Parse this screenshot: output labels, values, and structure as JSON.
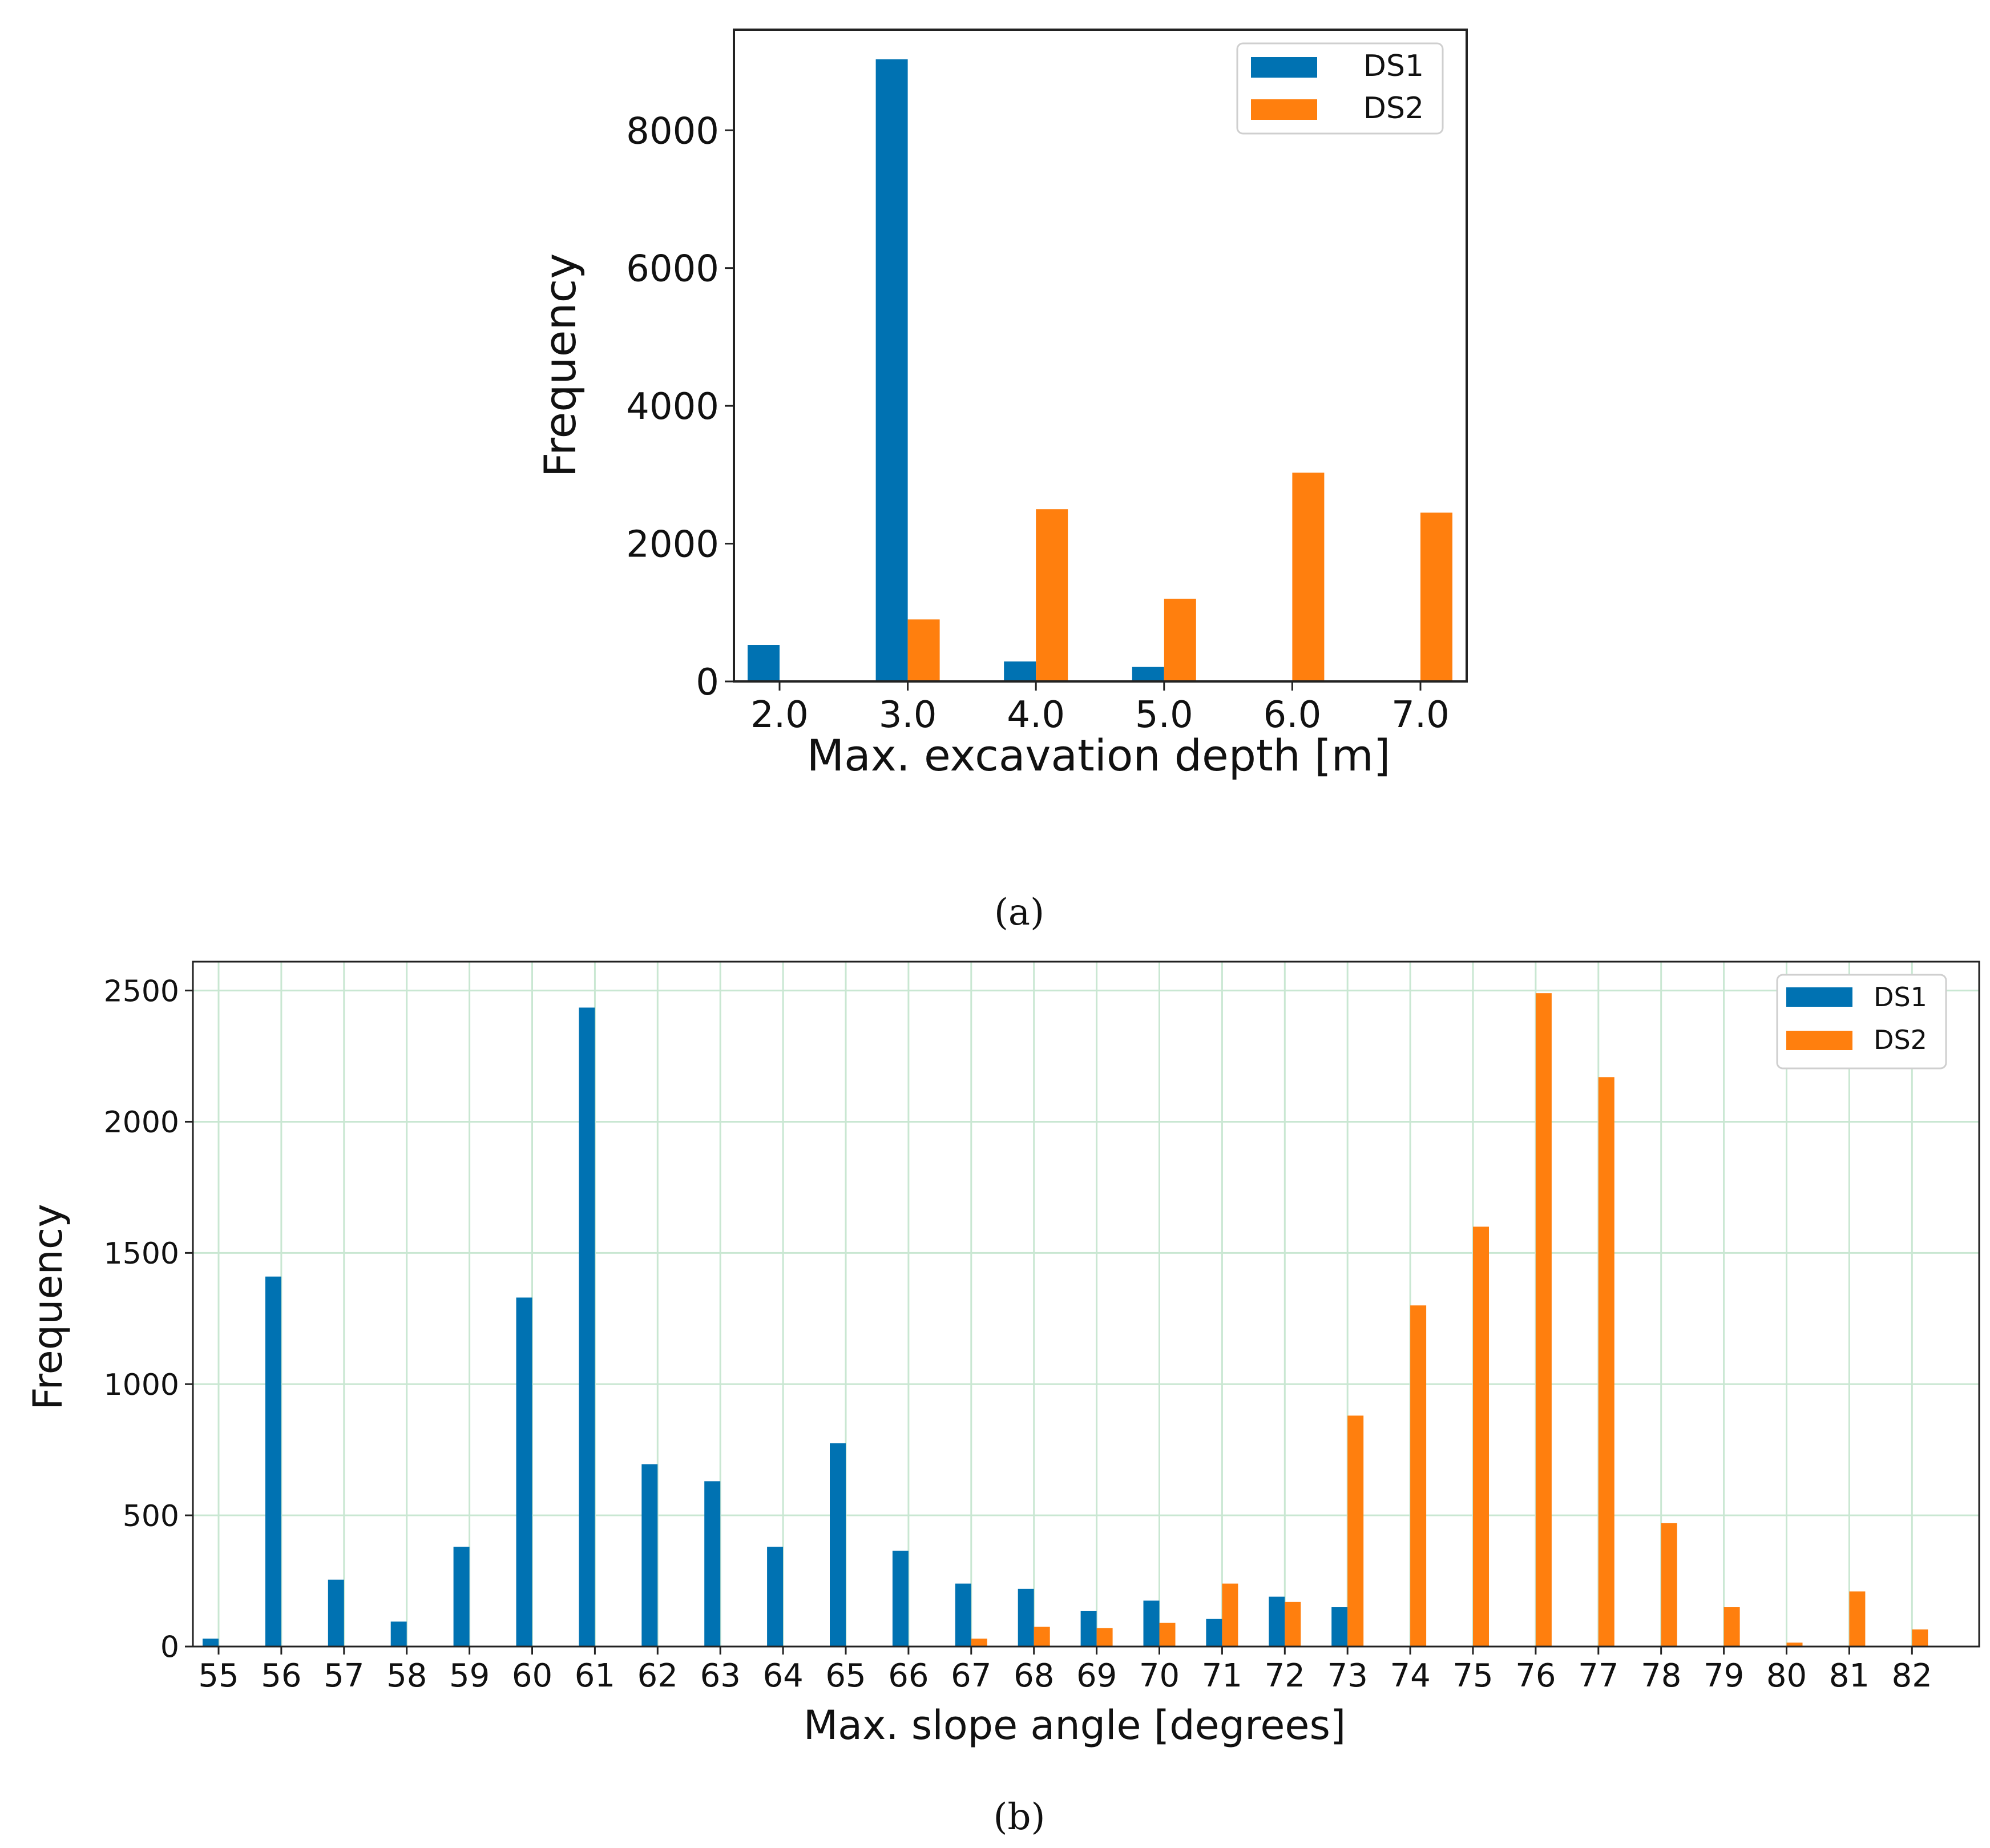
{
  "figure": {
    "caption_a": "(a)",
    "caption_b": "(b)"
  },
  "colors": {
    "ds1": "#0072b2",
    "ds2": "#ff7f0e",
    "grid": "#c9e7d2"
  },
  "chart_data": [
    {
      "id": "a",
      "type": "bar",
      "title": "",
      "xlabel": "Max. excavation depth [m]",
      "ylabel": "Frequency",
      "categories": [
        "2.0",
        "3.0",
        "4.0",
        "5.0",
        "6.0",
        "7.0"
      ],
      "series": [
        {
          "name": "DS1",
          "values": [
            530,
            9030,
            290,
            210,
            0,
            0
          ]
        },
        {
          "name": "DS2",
          "values": [
            0,
            900,
            2500,
            1200,
            3030,
            2450
          ]
        }
      ],
      "yticks": [
        0,
        2000,
        4000,
        6000,
        8000
      ],
      "ylim": [
        0,
        9460
      ],
      "grid": false,
      "legend": "top-right"
    },
    {
      "id": "b",
      "type": "bar",
      "title": "",
      "xlabel": "Max. slope angle [degrees]",
      "ylabel": "Frequency",
      "categories": [
        "55",
        "56",
        "57",
        "58",
        "59",
        "60",
        "61",
        "62",
        "63",
        "64",
        "65",
        "66",
        "67",
        "68",
        "69",
        "70",
        "71",
        "72",
        "73",
        "74",
        "75",
        "76",
        "77",
        "78",
        "79",
        "80",
        "81",
        "82"
      ],
      "series": [
        {
          "name": "DS1",
          "values": [
            30,
            1410,
            255,
            95,
            380,
            1330,
            2435,
            695,
            630,
            380,
            775,
            365,
            240,
            220,
            135,
            175,
            105,
            190,
            150,
            0,
            0,
            0,
            0,
            0,
            0,
            0,
            0,
            0
          ]
        },
        {
          "name": "DS2",
          "values": [
            0,
            0,
            0,
            0,
            0,
            0,
            0,
            0,
            0,
            0,
            0,
            0,
            30,
            75,
            70,
            90,
            240,
            170,
            880,
            1300,
            1600,
            2490,
            2170,
            470,
            150,
            15,
            210,
            65
          ]
        }
      ],
      "yticks": [
        0,
        500,
        1000,
        1500,
        2000,
        2500
      ],
      "ylim": [
        0,
        2610
      ],
      "grid": true,
      "legend": "top-right"
    }
  ]
}
